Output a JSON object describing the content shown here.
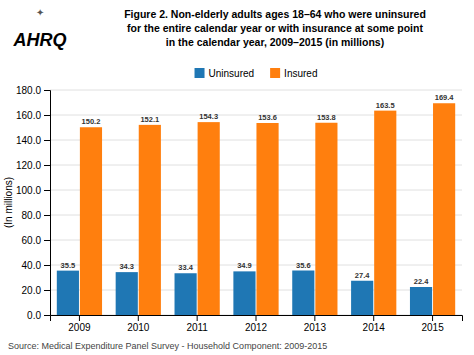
{
  "chart_data": {
    "type": "bar",
    "title": "Figure 2. Non-elderly adults ages 18–64 who were uninsured\nfor the entire calendar year or with insurance at some point\nin the calendar year, 2009–2015 (in millions)",
    "ylabel": "(In millions)",
    "annotations": [
      "✦",
      "AHRQ",
      "Source:  Medical Expenditure Panel Survey - Household Component: 2009-2015"
    ],
    "categories": [
      "2009",
      "2010",
      "2011",
      "2012",
      "2013",
      "2014",
      "2015"
    ],
    "series": [
      {
        "name": "Uninsured",
        "values": [
          35.5,
          34.3,
          33.4,
          34.9,
          35.6,
          27.4,
          22.4
        ]
      },
      {
        "name": "Insured",
        "values": [
          150.2,
          152.1,
          154.3,
          153.6,
          153.8,
          163.5,
          169.4
        ]
      }
    ],
    "ylim": [
      0,
      180
    ],
    "yticks": [
      {
        "value": 0,
        "label": "0.0"
      },
      {
        "value": 20,
        "label": "20.0"
      },
      {
        "value": 40,
        "label": "40.0"
      },
      {
        "value": 60,
        "label": "60.0"
      },
      {
        "value": 80,
        "label": "80.0"
      },
      {
        "value": 100,
        "label": "100.0"
      },
      {
        "value": 120,
        "label": "120.0"
      },
      {
        "value": 140,
        "label": "140.0"
      },
      {
        "value": 160,
        "label": "160.0"
      },
      {
        "value": 180,
        "label": "180.0"
      }
    ],
    "grid": true,
    "legend": "top",
    "data_labels": true
  }
}
